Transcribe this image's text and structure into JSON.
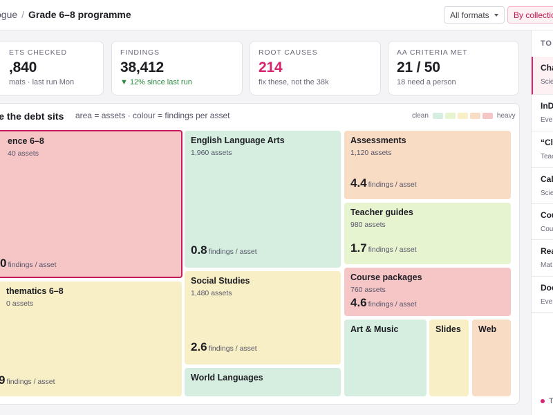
{
  "breadcrumb": {
    "prev": "ogue",
    "sep": "/",
    "current": "Grade 6–8 programme"
  },
  "toolbar": {
    "formats_label": "All formats",
    "group_label": "By collection"
  },
  "stats": [
    {
      "label": "ETS CHECKED",
      "value": ",840",
      "sub": "mats · last run Mon"
    },
    {
      "label": "FINDINGS",
      "value": "38,412",
      "sub": "▼ 12% since last run"
    },
    {
      "label": "ROOT CAUSES",
      "value": "214",
      "sub": "fix these, not the 38k"
    },
    {
      "label": "AA CRITERIA MET",
      "value": "21 / 50",
      "sub": "18 need a person"
    }
  ],
  "treemap": {
    "title": "ere the debt sits",
    "subtitle": "area = assets · colour = findings per asset",
    "legend": {
      "low": "clean",
      "high": "heavy",
      "colors": [
        "#d5eedf",
        "#e6f4d0",
        "#f8efc6",
        "#f9dcc4",
        "#f6c6c6"
      ]
    },
    "unit": "findings / asset",
    "tiles": [
      {
        "name": "ence 6–8",
        "assets": "40 assets",
        "value": "0",
        "color": "#f6c6c6"
      },
      {
        "name": "thematics 6–8",
        "assets": "0 assets",
        "value": "9",
        "color": "#f8efc6"
      },
      {
        "name": "English Language Arts",
        "assets": "1,960 assets",
        "value": "0.8",
        "color": "#d5eedf"
      },
      {
        "name": "Social Studies",
        "assets": "1,480 assets",
        "value": "2.6",
        "color": "#f8efc6"
      },
      {
        "name": "World Languages",
        "color": "#d5eedf"
      },
      {
        "name": "Assessments",
        "assets": "1,120 assets",
        "value": "4.4",
        "color": "#f9dcc4"
      },
      {
        "name": "Teacher guides",
        "assets": "980 assets",
        "value": "1.7",
        "color": "#e6f4d0"
      },
      {
        "name": "Course packages",
        "assets": "760 assets",
        "value": "4.6",
        "color": "#f6c6c6"
      },
      {
        "name": "Art & Music",
        "color": "#d5eedf"
      },
      {
        "name": "Slides",
        "color": "#f8efc6"
      },
      {
        "name": "Web",
        "color": "#f9dcc4"
      }
    ]
  },
  "rail": {
    "head": "TO",
    "items": [
      {
        "t": "Cha",
        "s": "Scie"
      },
      {
        "t": "InD",
        "s": "Eve"
      },
      {
        "t": "“Cl",
        "s": "Teac"
      },
      {
        "t": "Cal",
        "s": "Scie"
      },
      {
        "t": "Cou",
        "s": "Cou"
      },
      {
        "t": "Rea",
        "s": "Mat"
      },
      {
        "t": "Doc",
        "s": "Eve"
      }
    ],
    "foot": "T"
  }
}
